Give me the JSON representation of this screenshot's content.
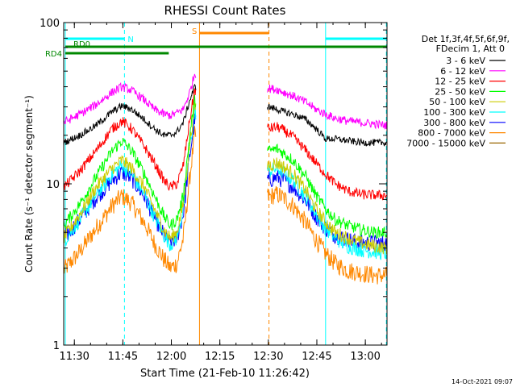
{
  "chart_data": {
    "type": "line",
    "title": "RHESSI Count Rates",
    "xlabel": "Start Time (21-Feb-10 11:26:42)",
    "ylabel": "Count Rate (s⁻¹ detector segment⁻¹)",
    "x_units": "minutes after 11:26:42 UT",
    "xlim": [
      0,
      100
    ],
    "ylim": [
      1,
      100
    ],
    "yscale": "log",
    "x_ticks": [
      {
        "value": 3.3,
        "label": "11:30"
      },
      {
        "value": 18.3,
        "label": "11:45"
      },
      {
        "value": 33.3,
        "label": "12:00"
      },
      {
        "value": 48.3,
        "label": "12:15"
      },
      {
        "value": 63.3,
        "label": "12:30"
      },
      {
        "value": 78.3,
        "label": "12:45"
      },
      {
        "value": 93.3,
        "label": "13:00"
      }
    ],
    "y_ticks": [
      {
        "value": 1,
        "label": "1"
      },
      {
        "value": 10,
        "label": "10"
      },
      {
        "value": 100,
        "label": "100"
      }
    ],
    "legend_header": [
      "Det 1f,3f,4f,5f,6f,9f,",
      "FDecim 1, Att 0"
    ],
    "legend_position": "right",
    "gap": [
      41,
      63
    ],
    "series": [
      {
        "name": "3 - 6 keV",
        "color": "#000000",
        "x": [
          0,
          5,
          10,
          15,
          18,
          21,
          25,
          28,
          31,
          33,
          35,
          37,
          39,
          40.5,
          63.5,
          66,
          68,
          71,
          75,
          78,
          81,
          84,
          88,
          92,
          96,
          100
        ],
        "y": [
          18,
          20,
          23,
          28,
          30.5,
          29,
          25,
          22,
          20,
          20,
          21,
          24,
          33,
          40,
          30,
          29,
          28,
          27,
          25,
          22,
          19,
          19,
          18.5,
          18,
          18,
          18
        ]
      },
      {
        "name": "6 - 12 keV",
        "color": "#ff00ff",
        "x": [
          0,
          5,
          10,
          15,
          18,
          21,
          25,
          28,
          31,
          33,
          35,
          37,
          39,
          40.5,
          63.5,
          66,
          68,
          71,
          75,
          78,
          81,
          84,
          88,
          92,
          96,
          100
        ],
        "y": [
          24,
          27,
          31,
          37,
          40,
          38,
          33,
          29,
          27,
          26.5,
          27.5,
          29,
          37,
          48,
          39,
          38.5,
          37,
          35,
          32,
          29,
          27,
          25.5,
          24.5,
          24,
          23.5,
          23
        ]
      },
      {
        "name": "12 - 25 keV",
        "color": "#ff0000",
        "x": [
          0,
          5,
          10,
          15,
          18,
          21,
          25,
          28,
          31,
          33,
          35,
          37,
          39,
          40.5,
          63.5,
          66,
          68,
          71,
          75,
          78,
          81,
          84,
          88,
          92,
          96,
          100
        ],
        "y": [
          9.5,
          12,
          16,
          22,
          24.5,
          22,
          17,
          13.5,
          10.5,
          9.5,
          10,
          13,
          25,
          38,
          22,
          22.5,
          21.5,
          19.5,
          16,
          13.5,
          11.5,
          10,
          9,
          8.6,
          8.5,
          8.5
        ]
      },
      {
        "name": "25 - 50 keV",
        "color": "#00ff00",
        "x": [
          0,
          5,
          10,
          15,
          18,
          21,
          25,
          28,
          31,
          33,
          35,
          37,
          39,
          40.5,
          63.5,
          66,
          68,
          71,
          75,
          78,
          81,
          84,
          88,
          92,
          96,
          100
        ],
        "y": [
          5.5,
          7.5,
          11,
          16,
          18.5,
          16,
          11.5,
          8.5,
          6.3,
          5.5,
          6.0,
          8.5,
          20,
          33,
          16,
          16.5,
          15.5,
          14,
          11,
          8.5,
          7,
          6,
          5.5,
          5.2,
          5,
          5
        ]
      },
      {
        "name": "50 - 100 keV",
        "color": "#cccc00",
        "x": [
          0,
          5,
          10,
          15,
          18,
          21,
          25,
          28,
          31,
          33,
          35,
          37,
          39,
          40.5,
          63.5,
          66,
          68,
          71,
          75,
          78,
          81,
          84,
          88,
          92,
          96,
          100
        ],
        "y": [
          4.6,
          6.5,
          9.5,
          12.5,
          14,
          12.5,
          9.5,
          7,
          5.2,
          4.6,
          5.0,
          7.5,
          18,
          30,
          13,
          13.5,
          12.8,
          11.5,
          9,
          7,
          5.8,
          5,
          4.6,
          4.3,
          4.1,
          4
        ]
      },
      {
        "name": "100 - 300 keV",
        "color": "#00ffff",
        "x": [
          0,
          5,
          10,
          15,
          18,
          21,
          25,
          28,
          31,
          33,
          35,
          37,
          39,
          40.5,
          63.5,
          66,
          68,
          71,
          75,
          78,
          81,
          84,
          88,
          92,
          96,
          100
        ],
        "y": [
          4.4,
          6,
          8.5,
          11.5,
          13,
          11.5,
          8.5,
          6.3,
          4.8,
          4.2,
          4.6,
          7,
          17,
          28,
          12,
          12.5,
          11.8,
          10.5,
          8.3,
          6.5,
          5.3,
          4.6,
          4.1,
          3.9,
          3.8,
          3.7
        ]
      },
      {
        "name": "300 - 800 keV",
        "color": "#0000ff",
        "x": [
          0,
          5,
          10,
          15,
          18,
          21,
          25,
          28,
          31,
          33,
          35,
          37,
          39,
          40.5,
          63.5,
          66,
          68,
          71,
          75,
          78,
          81,
          84,
          88,
          92,
          96,
          100
        ],
        "y": [
          4.6,
          6,
          8.2,
          10.5,
          11.8,
          10.8,
          8.3,
          6.2,
          4.8,
          4.3,
          4.6,
          6.5,
          15,
          25,
          10.5,
          11,
          10.5,
          9.6,
          7.8,
          6.3,
          5.3,
          4.8,
          4.5,
          4.3,
          4.3,
          4.3
        ]
      },
      {
        "name": "800 - 7000 keV",
        "color": "#ff8800",
        "x": [
          0,
          5,
          10,
          15,
          18,
          21,
          25,
          28,
          31,
          33,
          35,
          37,
          39,
          40.5,
          63.5,
          66,
          68,
          71,
          75,
          78,
          81,
          84,
          88,
          92,
          96,
          100
        ],
        "y": [
          2.9,
          3.8,
          5.3,
          7.3,
          8.4,
          7.6,
          5.7,
          4.3,
          3.4,
          3.0,
          3.2,
          4.6,
          11,
          20,
          8.3,
          8.6,
          8.2,
          7.3,
          5.7,
          4.5,
          3.7,
          3.2,
          2.9,
          2.8,
          2.7,
          2.7
        ]
      },
      {
        "name": "7000 - 15000 keV",
        "color": "#996600",
        "x": [],
        "y": []
      }
    ],
    "attenuator_bars": [
      {
        "label": "N",
        "color": "#00ffff",
        "x_start": 0.5,
        "x_end": 18.8
      },
      {
        "label": "",
        "color": "#00ffff",
        "x_start": 81,
        "x_end": 100
      }
    ],
    "bars": [
      {
        "label": "RD0",
        "color": "#008800",
        "x_start": 0.5,
        "x_end": 100
      },
      {
        "label": "RD4",
        "color": "#008800",
        "x_start": 0.5,
        "x_end": 32.5
      },
      {
        "label": "S",
        "color": "#ff8800",
        "x_start": 42,
        "x_end": 63.5
      }
    ],
    "vlines": [
      {
        "x": 0.5,
        "color": "#00ffff",
        "style": "solid"
      },
      {
        "x": 18.8,
        "color": "#00ffff",
        "style": "dashed"
      },
      {
        "x": 42,
        "color": "#ff8800",
        "style": "solid"
      },
      {
        "x": 63.5,
        "color": "#ff8800",
        "style": "dashed"
      },
      {
        "x": 81,
        "color": "#00ffff",
        "style": "solid"
      },
      {
        "x": 99.8,
        "color": "#00ffff",
        "style": "dashed"
      }
    ],
    "footer_timestamp": "14-Oct-2021 09:07"
  }
}
